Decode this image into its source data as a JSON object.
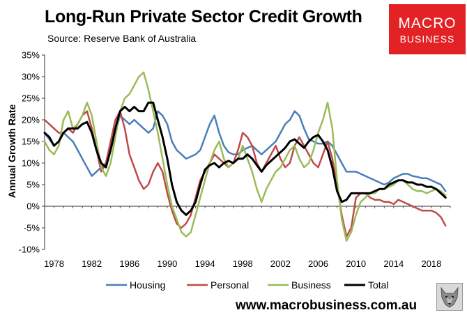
{
  "header": {
    "title": "Long-Run Private Sector Credit Growth",
    "subtitle": "Source: Reserve Bank of Australia"
  },
  "logo": {
    "line1": "MACRO",
    "line2": "BUSINESS"
  },
  "footer": {
    "url": "www.macrobusiness.com.au"
  },
  "chart_data": {
    "type": "line",
    "title": "Long-Run Private Sector Credit Growth",
    "xlabel": "",
    "ylabel": "Annual Growth Rate",
    "xlim": [
      1977.0,
      2020.0
    ],
    "ylim": [
      -10,
      35
    ],
    "yticks": [
      -10,
      -5,
      0,
      5,
      10,
      15,
      20,
      25,
      30,
      35
    ],
    "ytick_labels": [
      "-10%",
      "-5%",
      "0%",
      "5%",
      "10%",
      "15%",
      "20%",
      "25%",
      "30%",
      "35%"
    ],
    "xticks": [
      1978,
      1982,
      1986,
      1990,
      1994,
      1998,
      2002,
      2006,
      2010,
      2014,
      2018
    ],
    "xtick_labels": [
      "1978",
      "1982",
      "1986",
      "1990",
      "1994",
      "1998",
      "2002",
      "2006",
      "2010",
      "2014",
      "2018"
    ],
    "grid": false,
    "legend_position": "bottom",
    "series": [
      {
        "name": "Housing",
        "color": "#4a7ebb",
        "x": [
          1977.0,
          1977.5,
          1978.0,
          1978.5,
          1979.0,
          1979.5,
          1980.0,
          1980.5,
          1981.0,
          1981.5,
          1982.0,
          1982.5,
          1983.0,
          1983.5,
          1984.0,
          1984.5,
          1985.0,
          1985.5,
          1986.0,
          1986.5,
          1987.0,
          1987.5,
          1988.0,
          1988.5,
          1989.0,
          1989.5,
          1990.0,
          1990.5,
          1991.0,
          1991.5,
          1992.0,
          1992.5,
          1993.0,
          1993.5,
          1994.0,
          1994.5,
          1995.0,
          1995.5,
          1996.0,
          1996.5,
          1997.0,
          1997.5,
          1998.0,
          1998.5,
          1999.0,
          1999.5,
          2000.0,
          2000.5,
          2001.0,
          2001.5,
          2002.0,
          2002.5,
          2003.0,
          2003.5,
          2004.0,
          2004.5,
          2005.0,
          2005.5,
          2006.0,
          2006.5,
          2007.0,
          2007.5,
          2008.0,
          2008.5,
          2009.0,
          2009.5,
          2010.0,
          2010.5,
          2011.0,
          2011.5,
          2012.0,
          2012.5,
          2013.0,
          2013.5,
          2014.0,
          2014.5,
          2015.0,
          2015.5,
          2016.0,
          2016.5,
          2017.0,
          2017.5,
          2018.0,
          2018.5,
          2019.0,
          2019.5
        ],
        "values": [
          17,
          15.5,
          14,
          15,
          17,
          16,
          15,
          13,
          11,
          9,
          7,
          8,
          9,
          10,
          13,
          17,
          21,
          20,
          19,
          20,
          19,
          18,
          17,
          18,
          22,
          21,
          19,
          15,
          13,
          12,
          11,
          11.5,
          12,
          13,
          16,
          19,
          21,
          17,
          14,
          12.5,
          12,
          12,
          13,
          13.5,
          14,
          13,
          12,
          13,
          14,
          15,
          17,
          19,
          20,
          22,
          21,
          18,
          15.5,
          15,
          14.5,
          14.5,
          15,
          14,
          12,
          10,
          8,
          8,
          8,
          7.5,
          7,
          6.5,
          6,
          5.5,
          5,
          5.5,
          6.5,
          7,
          7.5,
          7.5,
          7,
          6.8,
          6.5,
          6.5,
          6,
          5.5,
          5,
          3.5
        ]
      },
      {
        "name": "Personal",
        "color": "#be4b48",
        "x": [
          1977.0,
          1977.5,
          1978.0,
          1978.5,
          1979.0,
          1979.5,
          1980.0,
          1980.5,
          1981.0,
          1981.5,
          1982.0,
          1982.5,
          1983.0,
          1983.5,
          1984.0,
          1984.5,
          1985.0,
          1985.5,
          1986.0,
          1986.5,
          1987.0,
          1987.5,
          1988.0,
          1988.5,
          1989.0,
          1989.5,
          1990.0,
          1990.5,
          1991.0,
          1991.5,
          1992.0,
          1992.5,
          1993.0,
          1993.5,
          1994.0,
          1994.5,
          1995.0,
          1995.5,
          1996.0,
          1996.5,
          1997.0,
          1997.5,
          1998.0,
          1998.5,
          1999.0,
          1999.5,
          2000.0,
          2000.5,
          2001.0,
          2001.5,
          2002.0,
          2002.5,
          2003.0,
          2003.5,
          2004.0,
          2004.5,
          2005.0,
          2005.5,
          2006.0,
          2006.5,
          2007.0,
          2007.5,
          2008.0,
          2008.5,
          2009.0,
          2009.5,
          2010.0,
          2010.5,
          2011.0,
          2011.5,
          2012.0,
          2012.5,
          2013.0,
          2013.5,
          2014.0,
          2014.5,
          2015.0,
          2015.5,
          2016.0,
          2016.5,
          2017.0,
          2017.5,
          2018.0,
          2018.5,
          2019.0,
          2019.5
        ],
        "values": [
          20,
          19,
          18,
          17,
          17,
          18,
          17,
          19,
          21,
          22,
          18,
          13,
          8,
          10,
          15,
          20,
          22,
          18,
          12,
          9,
          6,
          4,
          5,
          8,
          10,
          8,
          3,
          -1,
          -4,
          -5,
          -4,
          -2,
          2,
          6,
          8,
          10,
          12,
          11,
          10,
          9,
          10,
          13,
          17,
          16,
          14,
          10,
          8,
          10,
          12,
          14,
          11,
          9,
          10,
          14,
          16,
          14,
          12,
          10,
          9,
          12,
          15,
          11,
          5,
          -2,
          -7,
          -5,
          2,
          3,
          3,
          2,
          1.5,
          1.5,
          1,
          1,
          0.5,
          1.5,
          1,
          0.5,
          0,
          -0.5,
          -1,
          -1,
          -1,
          -1.5,
          -2.5,
          -4.5
        ]
      },
      {
        "name": "Business",
        "color": "#9bbb59",
        "x": [
          1977.0,
          1977.5,
          1978.0,
          1978.5,
          1979.0,
          1979.5,
          1980.0,
          1980.5,
          1981.0,
          1981.5,
          1982.0,
          1982.5,
          1983.0,
          1983.5,
          1984.0,
          1984.5,
          1985.0,
          1985.5,
          1986.0,
          1986.5,
          1987.0,
          1987.5,
          1988.0,
          1988.5,
          1989.0,
          1989.5,
          1990.0,
          1990.5,
          1991.0,
          1991.5,
          1992.0,
          1992.5,
          1993.0,
          1993.5,
          1994.0,
          1994.5,
          1995.0,
          1995.5,
          1996.0,
          1996.5,
          1997.0,
          1997.5,
          1998.0,
          1998.5,
          1999.0,
          1999.5,
          2000.0,
          2000.5,
          2001.0,
          2001.5,
          2002.0,
          2002.5,
          2003.0,
          2003.5,
          2004.0,
          2004.5,
          2005.0,
          2005.5,
          2006.0,
          2006.5,
          2007.0,
          2007.5,
          2008.0,
          2008.5,
          2009.0,
          2009.5,
          2010.0,
          2010.5,
          2011.0,
          2011.5,
          2012.0,
          2012.5,
          2013.0,
          2013.5,
          2014.0,
          2014.5,
          2015.0,
          2015.5,
          2016.0,
          2016.5,
          2017.0,
          2017.5,
          2018.0,
          2018.5,
          2019.0,
          2019.5
        ],
        "values": [
          15,
          13,
          12,
          14,
          20,
          22,
          18,
          19,
          21,
          24,
          21,
          15,
          9,
          7,
          10,
          16,
          22,
          25,
          26,
          28,
          30,
          31,
          27,
          22,
          17,
          11,
          5,
          0,
          -3,
          -6,
          -7,
          -6,
          -2,
          2,
          6,
          10,
          13,
          15,
          11,
          9,
          10,
          11,
          14,
          11,
          8,
          4,
          1,
          4,
          6,
          8,
          9,
          11,
          13,
          14,
          11,
          9,
          10,
          13,
          17,
          20,
          24,
          18,
          6,
          -3,
          -8,
          -6,
          -2,
          1,
          2,
          3,
          3,
          4,
          4,
          4.5,
          5,
          6,
          6,
          5,
          4,
          3.5,
          3.5,
          3,
          3.5,
          4,
          3.5,
          2.5
        ]
      },
      {
        "name": "Total",
        "color": "#000000",
        "x": [
          1977.0,
          1977.5,
          1978.0,
          1978.5,
          1979.0,
          1979.5,
          1980.0,
          1980.5,
          1981.0,
          1981.5,
          1982.0,
          1982.5,
          1983.0,
          1983.5,
          1984.0,
          1984.5,
          1985.0,
          1985.5,
          1986.0,
          1986.5,
          1987.0,
          1987.5,
          1988.0,
          1988.5,
          1989.0,
          1989.5,
          1990.0,
          1990.5,
          1991.0,
          1991.5,
          1992.0,
          1992.5,
          1993.0,
          1993.5,
          1994.0,
          1994.5,
          1995.0,
          1995.5,
          1996.0,
          1996.5,
          1997.0,
          1997.5,
          1998.0,
          1998.5,
          1999.0,
          1999.5,
          2000.0,
          2000.5,
          2001.0,
          2001.5,
          2002.0,
          2002.5,
          2003.0,
          2003.5,
          2004.0,
          2004.5,
          2005.0,
          2005.5,
          2006.0,
          2006.5,
          2007.0,
          2007.5,
          2008.0,
          2008.5,
          2009.0,
          2009.5,
          2010.0,
          2010.5,
          2011.0,
          2011.5,
          2012.0,
          2012.5,
          2013.0,
          2013.5,
          2014.0,
          2014.5,
          2015.0,
          2015.5,
          2016.0,
          2016.5,
          2017.0,
          2017.5,
          2018.0,
          2018.5,
          2019.0,
          2019.5
        ],
        "values": [
          17,
          16,
          14,
          15,
          17,
          18,
          18,
          18,
          19,
          19.5,
          17,
          13,
          10,
          9,
          13,
          18,
          22,
          23,
          22,
          23,
          22,
          22,
          24,
          24,
          20,
          16,
          11,
          5,
          1,
          -1,
          -2,
          -1,
          1,
          5,
          8.5,
          9.5,
          10,
          9,
          10,
          10.5,
          10,
          11,
          11,
          12,
          11,
          9.5,
          8,
          9.5,
          10.5,
          11.5,
          12.5,
          13.5,
          15,
          15.5,
          14.5,
          13.5,
          15,
          16,
          16.5,
          15,
          13,
          9,
          3.5,
          1,
          1.5,
          3,
          3,
          3,
          3,
          3,
          3.5,
          4,
          4,
          5,
          5.5,
          6,
          6,
          5.5,
          5.5,
          5,
          5,
          4.5,
          4.5,
          4,
          3,
          2
        ]
      }
    ]
  }
}
